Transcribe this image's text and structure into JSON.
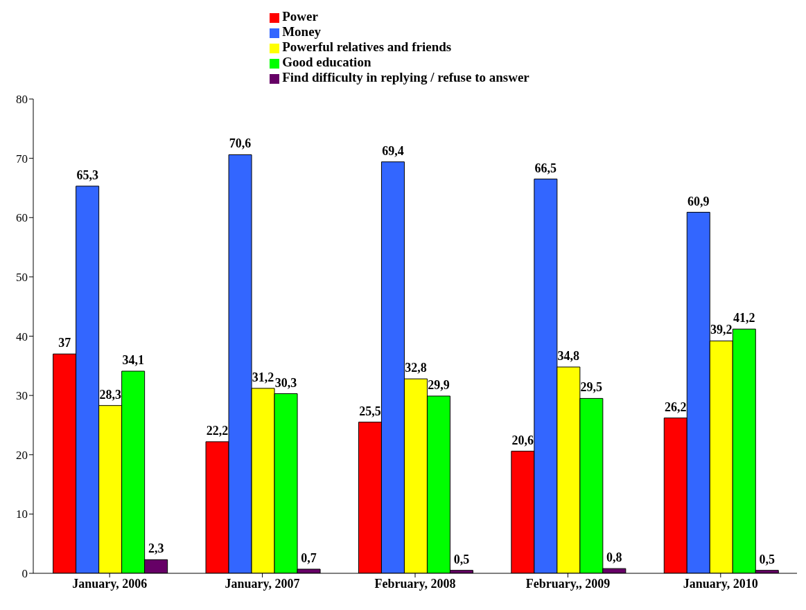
{
  "chart_data": {
    "type": "bar",
    "categories": [
      "January, 2006",
      "January, 2007",
      "February, 2008",
      "February,, 2009",
      "January, 2010"
    ],
    "series": [
      {
        "name": "Power",
        "color": "#ff0000",
        "values": [
          37,
          22.2,
          25.5,
          20.6,
          26.2
        ],
        "value_labels": [
          "37",
          "22,2",
          "25,5",
          "20,6",
          "26,2"
        ]
      },
      {
        "name": "Money",
        "color": "#3366ff",
        "values": [
          65.3,
          70.6,
          69.4,
          66.5,
          60.9
        ],
        "value_labels": [
          "65,3",
          "70,6",
          "69,4",
          "66,5",
          "60,9"
        ]
      },
      {
        "name": "Powerful relatives and friends",
        "color": "#ffff00",
        "values": [
          28.3,
          31.2,
          32.8,
          34.8,
          39.2
        ],
        "value_labels": [
          "28,3",
          "31,2",
          "32,8",
          "34,8",
          "39,2"
        ]
      },
      {
        "name": "Good education",
        "color": "#00ff00",
        "values": [
          34.1,
          30.3,
          29.9,
          29.5,
          41.2
        ],
        "value_labels": [
          "34,1",
          "30,3",
          "29,9",
          "29,5",
          "41,2"
        ]
      },
      {
        "name": "Find difficulty in replying / refuse to answer",
        "color": "#660066",
        "values": [
          2.3,
          0.7,
          0.5,
          0.8,
          0.5
        ],
        "value_labels": [
          "2,3",
          "0,7",
          "0,5",
          "0,8",
          "0,5"
        ]
      }
    ],
    "ylim": [
      0,
      80
    ],
    "yticks": [
      0,
      10,
      20,
      30,
      40,
      50,
      60,
      70,
      80
    ],
    "grid": false,
    "legend": "top"
  }
}
